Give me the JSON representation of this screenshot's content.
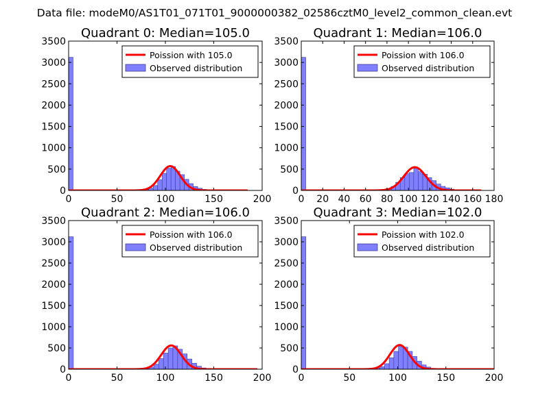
{
  "figure_title": "Data file: modeM0/AS1T01_071T01_9000000382_02586cztM0_level2_common_clean.evt",
  "colors": {
    "bar_fill": "#8080ff",
    "bar_edge": "#3a3aa0",
    "curve": "#ff0000",
    "frame": "#000000"
  },
  "chart_data": [
    {
      "type": "bar",
      "title": "Quadrant 0: Median=105.0",
      "xlim": [
        0,
        200
      ],
      "ylim": [
        0,
        3500
      ],
      "xticks": [
        0,
        50,
        100,
        150,
        200
      ],
      "yticks": [
        0,
        500,
        1000,
        1500,
        2000,
        2500,
        3000,
        3500
      ],
      "bin_width": 4.6,
      "bars": [
        [
          0,
          3120
        ],
        [
          73.6,
          10
        ],
        [
          78.2,
          20
        ],
        [
          82.8,
          55
        ],
        [
          87.4,
          115
        ],
        [
          92,
          250
        ],
        [
          96.6,
          400
        ],
        [
          101.2,
          520
        ],
        [
          105.8,
          560
        ],
        [
          110.4,
          450
        ],
        [
          115,
          370
        ],
        [
          119.6,
          260
        ],
        [
          124.2,
          160
        ],
        [
          128.8,
          90
        ],
        [
          133.4,
          50
        ],
        [
          138,
          25
        ],
        [
          142.6,
          15
        ],
        [
          147.2,
          8
        ],
        [
          151.8,
          5
        ]
      ],
      "curve_mean": 105.0,
      "curve_scale": 0.0,
      "curve_xmax": 185,
      "curve_peak": 570,
      "legend": [
        "Poission with 105.0",
        "Observed distribution"
      ]
    },
    {
      "type": "bar",
      "title": "Quadrant 1: Median=106.0",
      "xlim": [
        0,
        180
      ],
      "ylim": [
        0,
        3500
      ],
      "xticks": [
        0,
        20,
        40,
        60,
        80,
        100,
        120,
        140,
        160,
        180
      ],
      "yticks": [
        0,
        500,
        1000,
        1500,
        2000,
        2500,
        3000,
        3500
      ],
      "bin_width": 4.2,
      "bars": [
        [
          0,
          3120
        ],
        [
          71.4,
          8
        ],
        [
          75.6,
          20
        ],
        [
          79.8,
          45
        ],
        [
          84,
          95
        ],
        [
          88.2,
          190
        ],
        [
          92.4,
          300
        ],
        [
          96.6,
          390
        ],
        [
          100.8,
          420
        ],
        [
          105,
          520
        ],
        [
          109.2,
          440
        ],
        [
          113.4,
          380
        ],
        [
          117.6,
          300
        ],
        [
          121.8,
          230
        ],
        [
          126,
          150
        ],
        [
          130.2,
          95
        ],
        [
          134.4,
          60
        ],
        [
          138.6,
          30
        ],
        [
          142.8,
          18
        ],
        [
          147,
          10
        ]
      ],
      "curve_mean": 106.0,
      "curve_xmax": 168,
      "curve_peak": 545,
      "legend": [
        "Poission with 106.0",
        "Observed distribution"
      ]
    },
    {
      "type": "bar",
      "title": "Quadrant 2: Median=106.0",
      "xlim": [
        0,
        200
      ],
      "ylim": [
        0,
        3500
      ],
      "xticks": [
        0,
        50,
        100,
        150,
        200
      ],
      "yticks": [
        0,
        500,
        1000,
        1500,
        2000,
        2500,
        3000,
        3500
      ],
      "bin_width": 4.9,
      "bars": [
        [
          0,
          3120
        ],
        [
          73.5,
          8
        ],
        [
          78.4,
          20
        ],
        [
          83.3,
          50
        ],
        [
          88.2,
          120
        ],
        [
          93.1,
          250
        ],
        [
          98,
          380
        ],
        [
          102.9,
          500
        ],
        [
          107.8,
          550
        ],
        [
          112.7,
          470
        ],
        [
          117.6,
          360
        ],
        [
          122.5,
          240
        ],
        [
          127.4,
          140
        ],
        [
          132.3,
          70
        ],
        [
          137.2,
          30
        ],
        [
          142.1,
          12
        ]
      ],
      "curve_mean": 106.0,
      "curve_xmax": 195,
      "curve_peak": 560,
      "legend": [
        "Poission with 106.0",
        "Observed distribution"
      ]
    },
    {
      "type": "bar",
      "title": "Quadrant 3: Median=102.0",
      "xlim": [
        0,
        200
      ],
      "ylim": [
        0,
        3500
      ],
      "xticks": [
        0,
        50,
        100,
        150,
        200
      ],
      "yticks": [
        0,
        500,
        1000,
        1500,
        2000,
        2500,
        3000,
        3500
      ],
      "bin_width": 4.8,
      "bars": [
        [
          0,
          3120
        ],
        [
          72,
          10
        ],
        [
          76.8,
          25
        ],
        [
          81.6,
          60
        ],
        [
          86.4,
          130
        ],
        [
          91.2,
          270
        ],
        [
          96,
          420
        ],
        [
          100.8,
          540
        ],
        [
          105.6,
          520
        ],
        [
          110.4,
          420
        ],
        [
          115.2,
          300
        ],
        [
          120,
          190
        ],
        [
          124.8,
          100
        ],
        [
          129.6,
          50
        ],
        [
          134.4,
          22
        ],
        [
          139.2,
          10
        ]
      ],
      "curve_mean": 102.0,
      "curve_xmax": 200,
      "curve_peak": 570,
      "legend": [
        "Poission with 102.0",
        "Observed distribution"
      ]
    }
  ]
}
